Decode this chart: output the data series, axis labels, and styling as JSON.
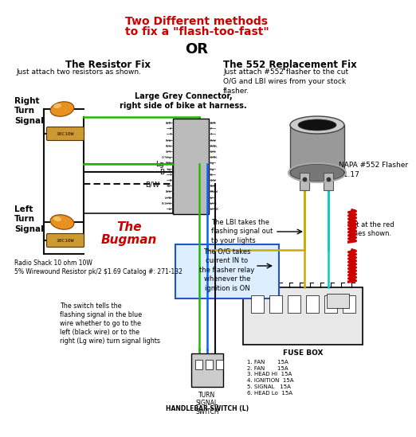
{
  "title_line1": "Two Different methods",
  "title_line2": "to fix a \"flash-too-fast\"",
  "title_color": "#cc0000",
  "or_text": "OR",
  "bg_color": "#ffffff",
  "left_title": "The Resistor Fix",
  "left_subtitle": "Just attach two resistors as shown.",
  "right_title": "The 552 Replacement Fix",
  "right_subtitle": "Just attach #552 flasher to the cut\nO/G and LBI wires from your stock\nflasher.",
  "right_turn_label": "Right\nTurn\nSignal",
  "left_turn_label": "Left\nTurn\nSignal",
  "connector_label": "Large Grey Connector,\nright side of bike at harness.",
  "bugman_text": "The\nBugman",
  "lbi_text": "The LBI takes the\nflashing signal out\nto your lights",
  "og_text": "The O/G takes\ncurrent IN to\nthe flasher relay\nwhenever the\nignition is ON",
  "napa_text": "NAPA #552 Flasher\n$1.17",
  "cut_text": "Cut at the red\nlines shown.",
  "fuse_label": "FUSE BOX",
  "fuse_list": "1. FAN       15A\n2. FAN       15A\n3. HEAD HI  15A\n4. IGNITION  15A\n5. SIGNAL   15A\n6. HEAD Lo  15A",
  "switch_text": "The switch tells the\nflashing signal in the blue\nwire whether to go to the\nleft (black wire) or to the\nright (Lg wire) turn signal lights",
  "turn_signal_label": "TURN\nSIGNAL\nSWITCH",
  "handlebar_label": "HANDLEBAR SWITCH (L)",
  "radio_shack_text": "Radio Shack 10 ohm 10W\n5% Wirewound Resistor pk/2 $1.69 Catalog #: 271-132",
  "wire_green": "#22bb00",
  "wire_blue": "#0066ff",
  "wire_black": "#111111",
  "wire_yellow": "#ccaa00",
  "wire_red": "#cc0000",
  "wire_cyan": "#00cccc",
  "component_fill": "#cc8800",
  "connector_fill": "#888888"
}
